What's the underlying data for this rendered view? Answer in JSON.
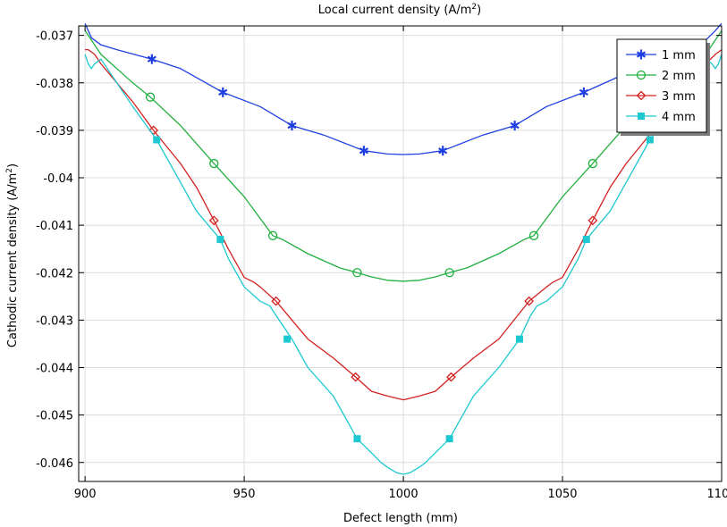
{
  "chart_data": {
    "type": "line",
    "title": "Local current density (A/m²)",
    "xlabel": "Defect length (mm)",
    "ylabel": "Cathodic current density (A/m²)",
    "xlim": [
      898,
      1100
    ],
    "ylim": [
      -0.0464,
      -0.0368
    ],
    "xticks": [
      900,
      950,
      1000,
      1050,
      1100
    ],
    "xtick_labels": [
      "900",
      "950",
      "1000",
      "1050",
      "1100"
    ],
    "yticks": [
      -0.037,
      -0.038,
      -0.039,
      -0.04,
      -0.041,
      -0.042,
      -0.043,
      -0.044,
      -0.045,
      -0.046
    ],
    "ytick_labels": [
      "-0.037",
      "-0.038",
      "-0.039",
      "-0.04",
      "-0.041",
      "-0.042",
      "-0.043",
      "-0.044",
      "-0.045",
      "-0.046"
    ],
    "grid": true,
    "legend_position": "top-right",
    "series": [
      {
        "name": "1 mm",
        "color": "#1f3fe0",
        "marker": "asterisk",
        "x": [
          900,
          901,
          902,
          905,
          910,
          921,
          930,
          943.3,
          955,
          965,
          975,
          987.6,
          995,
          1000,
          1005,
          1012.4,
          1025,
          1035,
          1045,
          1056.7,
          1070,
          1079,
          1090,
          1095,
          1098,
          1100
        ],
        "y": [
          -0.03675,
          -0.0369,
          -0.03705,
          -0.0372,
          -0.0373,
          -0.0375,
          -0.0377,
          -0.0382,
          -0.0385,
          -0.0389,
          -0.0391,
          -0.03943,
          -0.0395,
          -0.03951,
          -0.0395,
          -0.03943,
          -0.0391,
          -0.0389,
          -0.0385,
          -0.0382,
          -0.0378,
          -0.0375,
          -0.0373,
          -0.0371,
          -0.0369,
          -0.03675
        ],
        "marker_x": [
          921,
          943.3,
          965,
          987.6,
          1012.4,
          1035,
          1056.7
        ],
        "marker_y": [
          -0.0375,
          -0.0382,
          -0.0389,
          -0.03943,
          -0.03943,
          -0.0389,
          -0.0382
        ]
      },
      {
        "name": "2 mm",
        "color": "#22b040",
        "marker": "circle",
        "x": [
          900,
          902,
          905,
          910,
          915,
          920.5,
          930,
          940.5,
          950,
          959,
          962,
          970,
          980,
          985.5,
          990,
          995,
          1000,
          1005,
          1010,
          1014.5,
          1020,
          1030,
          1038,
          1041,
          1050,
          1059.5,
          1070,
          1079.5,
          1085,
          1090,
          1095,
          1098,
          1100
        ],
        "y": [
          -0.0369,
          -0.0371,
          -0.0374,
          -0.0377,
          -0.038,
          -0.0383,
          -0.0389,
          -0.0397,
          -0.0404,
          -0.04122,
          -0.0413,
          -0.0416,
          -0.0419,
          -0.042,
          -0.04209,
          -0.04216,
          -0.04218,
          -0.04216,
          -0.04209,
          -0.042,
          -0.0419,
          -0.0416,
          -0.0413,
          -0.04122,
          -0.0404,
          -0.0397,
          -0.0389,
          -0.0383,
          -0.038,
          -0.0377,
          -0.0374,
          -0.0371,
          -0.0369
        ],
        "marker_x": [
          920.5,
          940.5,
          959,
          985.5,
          1014.5,
          1041,
          1059.5,
          1079.5
        ],
        "marker_y": [
          -0.0383,
          -0.0397,
          -0.04122,
          -0.042,
          -0.042,
          -0.04122,
          -0.0397,
          -0.0383
        ]
      },
      {
        "name": "3 mm",
        "color": "#d42020",
        "marker": "diamond",
        "x": [
          900,
          901,
          903,
          905,
          910,
          915,
          921.5,
          930,
          935,
          940.5,
          945,
          950,
          953,
          955,
          960,
          965,
          970,
          978,
          985,
          990,
          995,
          1000,
          1005,
          1010,
          1015,
          1022,
          1030,
          1039.5,
          1045,
          1047,
          1050,
          1055,
          1059.5,
          1065,
          1070,
          1078.5,
          1085,
          1090,
          1095,
          1098,
          1100
        ],
        "y": [
          -0.0373,
          -0.0373,
          -0.0374,
          -0.0376,
          -0.038,
          -0.0384,
          -0.039,
          -0.0397,
          -0.0402,
          -0.0409,
          -0.0415,
          -0.0421,
          -0.0422,
          -0.0423,
          -0.0426,
          -0.043,
          -0.0434,
          -0.0438,
          -0.0442,
          -0.0445,
          -0.0446,
          -0.04468,
          -0.0446,
          -0.0445,
          -0.0442,
          -0.0438,
          -0.0434,
          -0.0426,
          -0.0423,
          -0.0422,
          -0.0421,
          -0.0415,
          -0.0409,
          -0.0402,
          -0.0397,
          -0.039,
          -0.0384,
          -0.038,
          -0.0376,
          -0.0374,
          -0.0373
        ],
        "marker_x": [
          921.5,
          940.5,
          960,
          985,
          1015,
          1039.5,
          1059.5,
          1078.5
        ],
        "marker_y": [
          -0.039,
          -0.0409,
          -0.0426,
          -0.0442,
          -0.0442,
          -0.0426,
          -0.0409,
          -0.039
        ]
      },
      {
        "name": "4 mm",
        "color": "#1ec8d0",
        "marker": "square",
        "x": [
          900,
          901,
          902,
          903,
          905,
          910,
          915,
          922.5,
          930,
          935,
          942.5,
          945,
          950,
          955,
          958,
          960,
          965,
          970,
          978,
          985.5,
          990,
          993,
          995,
          998,
          1000,
          1002,
          1005,
          1007,
          1010,
          1014.5,
          1022,
          1030,
          1036.5,
          1040,
          1042,
          1045,
          1050,
          1055,
          1057.5,
          1065,
          1070,
          1077.5,
          1085,
          1090,
          1095,
          1097,
          1098,
          1099,
          1100
        ],
        "y": [
          -0.0374,
          -0.0376,
          -0.0377,
          -0.0376,
          -0.0375,
          -0.038,
          -0.0385,
          -0.0392,
          -0.0401,
          -0.0407,
          -0.0413,
          -0.0417,
          -0.0423,
          -0.0426,
          -0.0427,
          -0.0429,
          -0.0434,
          -0.044,
          -0.0446,
          -0.0455,
          -0.0458,
          -0.046,
          -0.0461,
          -0.04622,
          -0.04625,
          -0.04622,
          -0.0461,
          -0.046,
          -0.0458,
          -0.0455,
          -0.0446,
          -0.044,
          -0.0434,
          -0.0429,
          -0.0427,
          -0.0426,
          -0.0423,
          -0.0417,
          -0.0413,
          -0.0407,
          -0.0401,
          -0.0392,
          -0.0385,
          -0.038,
          -0.0375,
          -0.0376,
          -0.0377,
          -0.0376,
          -0.0374
        ],
        "marker_x": [
          922.5,
          942.5,
          963.5,
          985.5,
          1014.5,
          1036.5,
          1057.5,
          1077.5
        ],
        "marker_y": [
          -0.0392,
          -0.0413,
          -0.0434,
          -0.0455,
          -0.0455,
          -0.0434,
          -0.0413,
          -0.0392
        ]
      }
    ]
  }
}
